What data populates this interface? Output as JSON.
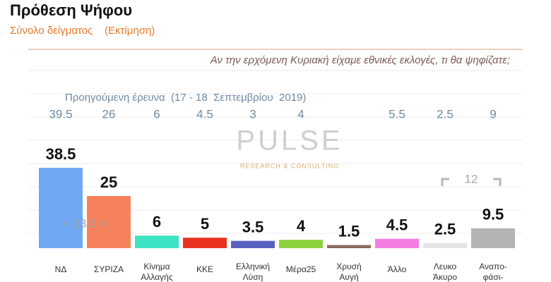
{
  "chart_data": {
    "type": "bar",
    "title": "Πρόθεση Ψήφου",
    "subtitle": "Σύνολο δείγματος    (Εκτίμηση)",
    "question": "Αν την ερχόμενη Κυριακή είχαμε εθνικές εκλογές, τι θα ψηφίζατε;",
    "previous_label": "Προηγούμενη έρευνα  (17 - 18  Σεπτεμβρίου  2019)",
    "watermark": "PULSE",
    "watermark_sub": "RESEARCH & CONSULTING",
    "annotations": [
      "< 13.5 >",
      "12"
    ],
    "categories": [
      "ΝΔ",
      "ΣΥΡΙΖΑ",
      "Κίνημα Αλλαγής",
      "ΚΚΕ",
      "Ελληνική Λύση",
      "Μέρα25",
      "Χρυσή Αυγή",
      "Άλλο",
      "Λευκο Άκυρο",
      "Αναπο- φάσι-"
    ],
    "values": [
      38.5,
      25,
      6,
      5,
      3.5,
      4,
      1.5,
      4.5,
      2.5,
      9.5
    ],
    "previous_values": [
      39.5,
      26,
      6,
      4.5,
      3,
      4,
      null,
      5.5,
      2.5,
      9
    ],
    "colors": [
      "#70a8f4",
      "#f6825c",
      "#3ee3c4",
      "#e8321e",
      "#5a60c2",
      "#8bd13e",
      "#8c6b5c",
      "#f27fe2",
      "#e6e6e6",
      "#b4b4b4"
    ]
  }
}
